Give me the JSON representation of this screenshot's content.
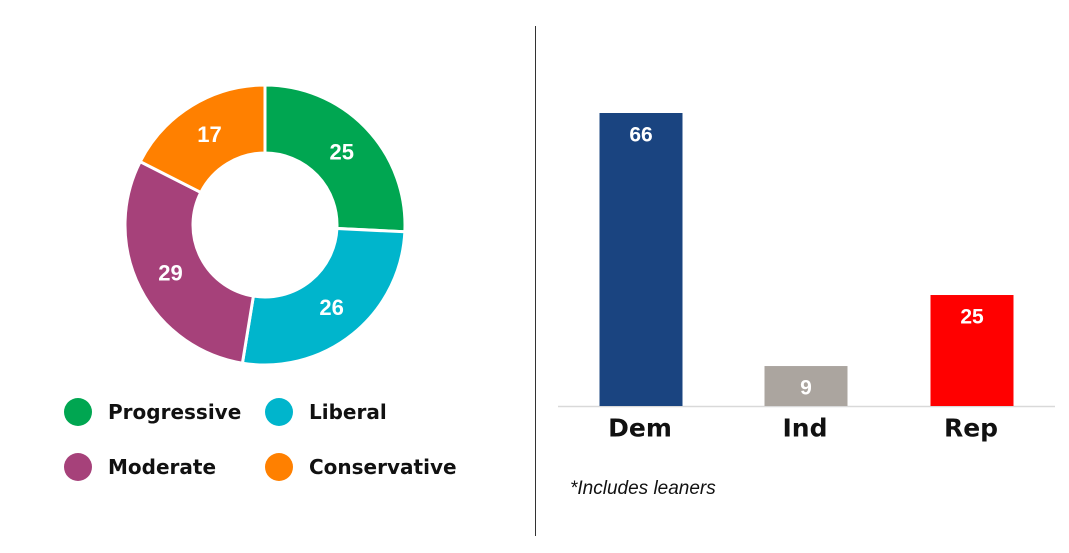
{
  "chart_data": [
    {
      "type": "pie",
      "style": "donut",
      "slices": [
        {
          "label": "Progressive",
          "value": 25,
          "color": "#00A651"
        },
        {
          "label": "Liberal",
          "value": 26,
          "color": "#00B5CC"
        },
        {
          "label": "Moderate",
          "value": 29,
          "color": "#A6417A"
        },
        {
          "label": "Conservative",
          "value": 17,
          "color": "#FF8000"
        }
      ],
      "legend_placement": "bottom"
    },
    {
      "type": "bar",
      "categories": [
        "Dem",
        "Ind",
        "Rep"
      ],
      "values": [
        66,
        9,
        25
      ],
      "colors": [
        "#1A4480",
        "#ABA59F",
        "#FF0000"
      ],
      "ylim": [
        0,
        66
      ],
      "grid": false,
      "note": "*Includes leaners"
    }
  ]
}
